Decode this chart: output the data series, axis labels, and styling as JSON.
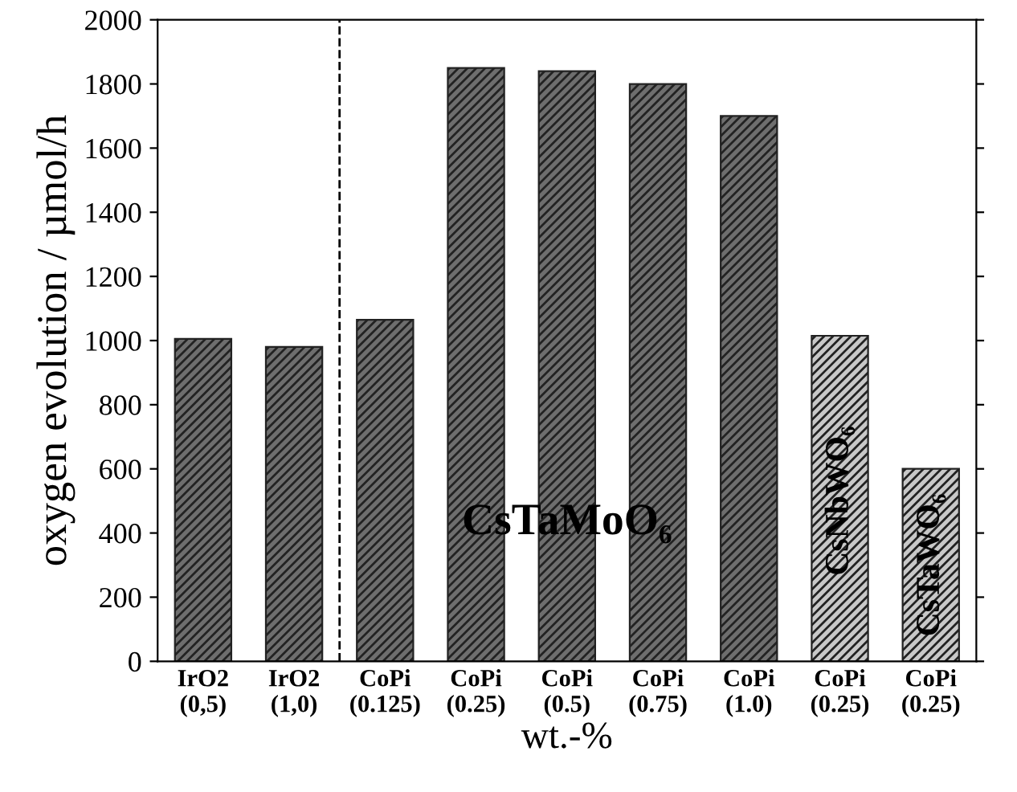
{
  "chart_data": {
    "type": "bar",
    "categories": [
      "IrO2\n(0,5)",
      "IrO2\n(1,0)",
      "CoPi\n(0.125)",
      "CoPi\n(0.25)",
      "CoPi\n(0.5)",
      "CoPi\n(0.75)",
      "CoPi\n(1.0)",
      "CoPi\n(0.25)",
      "CoPi\n(0.25)"
    ],
    "values": [
      1005,
      980,
      1065,
      1850,
      1840,
      1800,
      1700,
      1015,
      600
    ],
    "colors": [
      "#6e6e6e",
      "#6e6e6e",
      "#6e6e6e",
      "#6e6e6e",
      "#6e6e6e",
      "#6e6e6e",
      "#6e6e6e",
      "#c8c8c8",
      "#c8c8c8"
    ],
    "xlabel": "wt.-%",
    "ylabel": "oxygen evolution / µmol/h",
    "ylim": [
      0,
      2000
    ],
    "yticks": [
      0,
      200,
      400,
      600,
      800,
      1000,
      1200,
      1400,
      1600,
      1800,
      2000
    ],
    "annotations": [
      "CsTaMoO₆",
      "CsNbWO₆",
      "CsTaWO₆"
    ],
    "grid": false,
    "legend": false
  }
}
